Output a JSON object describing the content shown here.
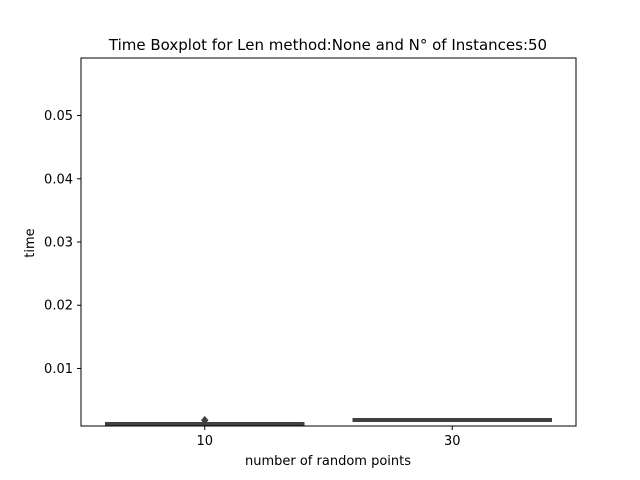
{
  "chart_data": {
    "type": "boxplot",
    "title": "Time Boxplot for Len method:None and N° of Instances:50",
    "xlabel": "number of random points",
    "ylabel": "time",
    "categories": [
      "10",
      "30"
    ],
    "ylim": [
      0.0009,
      0.0591
    ],
    "yticks": [
      0.01,
      0.02,
      0.03,
      0.04,
      0.05
    ],
    "ytick_labels": [
      "0.01",
      "0.02",
      "0.03",
      "0.04",
      "0.05"
    ],
    "boxes": [
      {
        "category": "10",
        "whisker_low": 0.00095,
        "q1": 0.00102,
        "median": 0.00107,
        "q3": 0.00112,
        "whisker_high": 0.0012,
        "outliers": [
          0.0015
        ]
      },
      {
        "category": "30",
        "whisker_low": 0.0016,
        "q1": 0.00165,
        "median": 0.0018,
        "q3": 0.00195,
        "whisker_high": 0.002,
        "outliers": []
      }
    ],
    "grid": false,
    "colors": {
      "box_edge": "#3f3f3f",
      "box_fill": "#4a4a4a"
    }
  }
}
